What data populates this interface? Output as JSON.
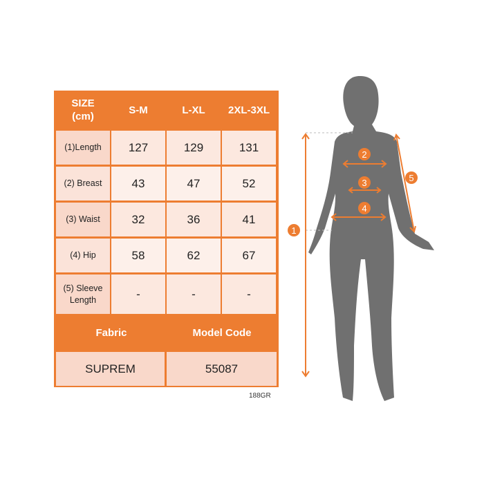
{
  "table": {
    "header": [
      "SIZE\n(cm)",
      "S-M",
      "L-XL",
      "2XL-3XL"
    ],
    "rows": [
      {
        "label": "(1)Length",
        "values": [
          "127",
          "129",
          "131"
        ]
      },
      {
        "label": "(2) Breast",
        "values": [
          "43",
          "47",
          "52"
        ]
      },
      {
        "label": "(3) Waist",
        "values": [
          "32",
          "36",
          "41"
        ]
      },
      {
        "label": "(4) Hip",
        "values": [
          "58",
          "62",
          "67"
        ]
      },
      {
        "label": "(5) Sleeve Length",
        "values": [
          "-",
          "-",
          "-"
        ]
      }
    ],
    "footer_headers": [
      "Fabric",
      "Model Code"
    ],
    "footer_values": [
      "SUPREM",
      "55087"
    ]
  },
  "product_code": "188GR",
  "figure": {
    "markers": [
      "1",
      "2",
      "3",
      "4",
      "5"
    ],
    "accent_color": "#ed7d31",
    "silhouette_color": "#6f6f6f"
  }
}
